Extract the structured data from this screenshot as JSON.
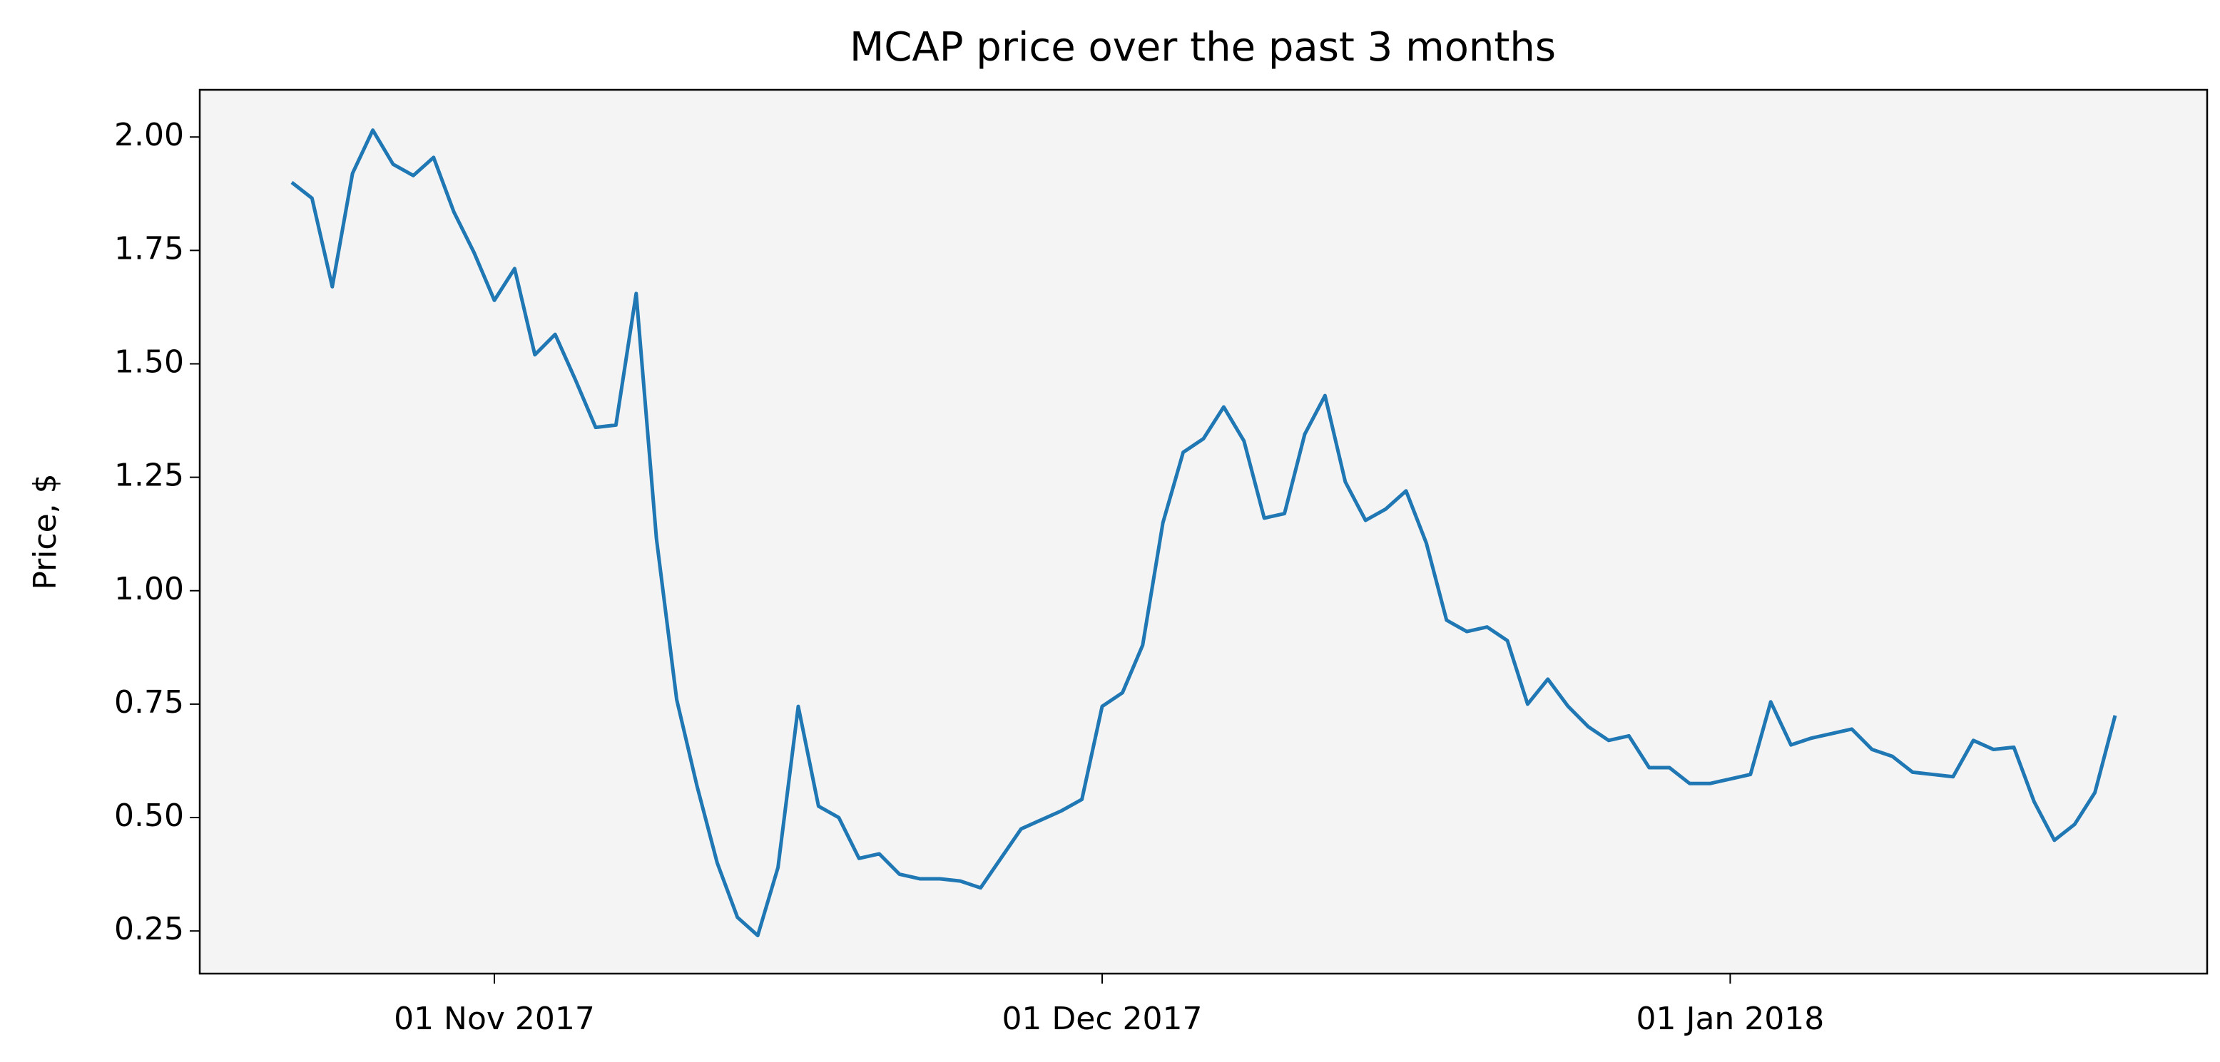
{
  "chart_data": {
    "type": "line",
    "title": "MCAP price over the past 3 months",
    "y_label": "Price, $",
    "x": [
      "2017-10-22",
      "2017-10-23",
      "2017-10-24",
      "2017-10-25",
      "2017-10-26",
      "2017-10-27",
      "2017-10-28",
      "2017-10-29",
      "2017-10-30",
      "2017-10-31",
      "2017-11-01",
      "2017-11-02",
      "2017-11-03",
      "2017-11-04",
      "2017-11-05",
      "2017-11-06",
      "2017-11-07",
      "2017-11-08",
      "2017-11-09",
      "2017-11-10",
      "2017-11-11",
      "2017-11-12",
      "2017-11-13",
      "2017-11-14",
      "2017-11-15",
      "2017-11-16",
      "2017-11-17",
      "2017-11-18",
      "2017-11-19",
      "2017-11-20",
      "2017-11-21",
      "2017-11-22",
      "2017-11-23",
      "2017-11-24",
      "2017-11-25",
      "2017-11-26",
      "2017-11-27",
      "2017-11-28",
      "2017-11-29",
      "2017-11-30",
      "2017-12-01",
      "2017-12-02",
      "2017-12-03",
      "2017-12-04",
      "2017-12-05",
      "2017-12-06",
      "2017-12-07",
      "2017-12-08",
      "2017-12-09",
      "2017-12-10",
      "2017-12-11",
      "2017-12-12",
      "2017-12-13",
      "2017-12-14",
      "2017-12-15",
      "2017-12-16",
      "2017-12-17",
      "2017-12-18",
      "2017-12-19",
      "2017-12-20",
      "2017-12-21",
      "2017-12-22",
      "2017-12-23",
      "2017-12-24",
      "2017-12-25",
      "2017-12-26",
      "2017-12-27",
      "2017-12-28",
      "2017-12-29",
      "2017-12-30",
      "2017-12-31",
      "2018-01-01",
      "2018-01-02",
      "2018-01-03",
      "2018-01-04",
      "2018-01-05",
      "2018-01-06",
      "2018-01-07",
      "2018-01-08",
      "2018-01-09",
      "2018-01-10",
      "2018-01-11",
      "2018-01-12",
      "2018-01-13",
      "2018-01-14",
      "2018-01-15",
      "2018-01-16",
      "2018-01-17",
      "2018-01-18",
      "2018-01-19",
      "2018-01-20"
    ],
    "series": [
      {
        "name": "MCAP",
        "color": "#1f77b4",
        "values": [
          1.9,
          1.865,
          1.67,
          1.92,
          2.015,
          1.94,
          1.915,
          1.955,
          1.835,
          1.745,
          1.64,
          1.71,
          1.52,
          1.565,
          1.465,
          1.36,
          1.365,
          1.655,
          1.115,
          0.76,
          0.57,
          0.4,
          0.28,
          0.24,
          0.39,
          0.745,
          0.525,
          0.5,
          0.41,
          0.42,
          0.375,
          0.365,
          0.365,
          0.36,
          0.345,
          0.41,
          0.475,
          0.495,
          0.515,
          0.54,
          0.745,
          0.775,
          0.88,
          1.15,
          1.305,
          1.335,
          1.405,
          1.33,
          1.16,
          1.17,
          1.345,
          1.43,
          1.24,
          1.155,
          1.18,
          1.22,
          1.105,
          0.935,
          0.91,
          0.92,
          0.89,
          0.75,
          0.805,
          0.745,
          0.7,
          0.67,
          0.68,
          0.61,
          0.61,
          0.575,
          0.575,
          0.585,
          0.595,
          0.755,
          0.66,
          0.675,
          0.685,
          0.695,
          0.65,
          0.635,
          0.6,
          0.595,
          0.59,
          0.67,
          0.65,
          0.655,
          0.535,
          0.45,
          0.485,
          0.555,
          0.725
        ]
      }
    ],
    "xlim": [
      "2017-10-17T11:00:00Z",
      "2018-01-24T13:00:00Z"
    ],
    "xticks": [
      {
        "value": "2017-11-01",
        "label": "01 Nov 2017"
      },
      {
        "value": "2017-12-01",
        "label": "01 Dec 2017"
      },
      {
        "value": "2018-01-01",
        "label": "01 Jan 2018"
      }
    ],
    "ylim": [
      0.156,
      2.104
    ],
    "yticks": [
      {
        "value": 0.25,
        "label": "0.25"
      },
      {
        "value": 0.5,
        "label": "0.50"
      },
      {
        "value": 0.75,
        "label": "0.75"
      },
      {
        "value": 1.0,
        "label": "1.00"
      },
      {
        "value": 1.25,
        "label": "1.25"
      },
      {
        "value": 1.5,
        "label": "1.50"
      },
      {
        "value": 1.75,
        "label": "1.75"
      },
      {
        "value": 2.0,
        "label": "2.00"
      }
    ],
    "background": "#f4f4f4",
    "grid": false
  }
}
